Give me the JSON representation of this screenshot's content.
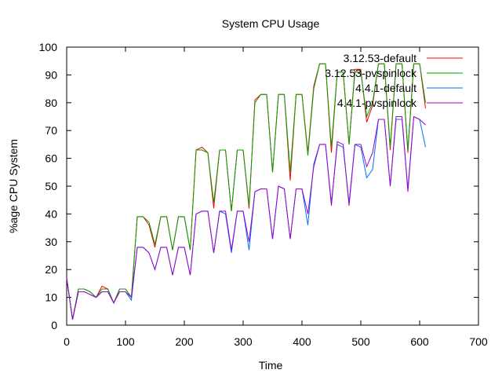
{
  "chart_data": {
    "type": "line",
    "title": "System CPU Usage",
    "xlabel": "Time",
    "ylabel": "%age CPU System",
    "xlim": [
      0,
      700
    ],
    "ylim": [
      0,
      100
    ],
    "xticks": [
      0,
      100,
      200,
      300,
      400,
      500,
      600,
      700
    ],
    "yticks": [
      0,
      10,
      20,
      30,
      40,
      50,
      60,
      70,
      80,
      90,
      100
    ],
    "grid": false,
    "legend": "top-right",
    "x": [
      0,
      10,
      20,
      30,
      40,
      50,
      60,
      70,
      80,
      90,
      100,
      110,
      120,
      130,
      140,
      150,
      160,
      170,
      180,
      190,
      200,
      210,
      220,
      230,
      240,
      250,
      260,
      270,
      280,
      290,
      300,
      310,
      320,
      330,
      340,
      350,
      360,
      370,
      380,
      390,
      400,
      410,
      420,
      430,
      440,
      450,
      460,
      470,
      480,
      490,
      500,
      510,
      520,
      530,
      540,
      550,
      560,
      570,
      580,
      590,
      600,
      610
    ],
    "series": [
      {
        "name": "3.12.53-default",
        "color": "#ff0000",
        "values": [
          17,
          2,
          13,
          13,
          12,
          10,
          14,
          13,
          8,
          13,
          13,
          10,
          39,
          39,
          36,
          28,
          39,
          39,
          27,
          39,
          39,
          27,
          63,
          64,
          62,
          42,
          63,
          63,
          41,
          63,
          63,
          42,
          81,
          83,
          83,
          55,
          83,
          83,
          52,
          83,
          83,
          62,
          86,
          94,
          94,
          62,
          91,
          91,
          65,
          92,
          92,
          73,
          79,
          94,
          94,
          63,
          94,
          94,
          62,
          94,
          94,
          78
        ]
      },
      {
        "name": "3.12.53-pvspinlock",
        "color": "#00a000",
        "values": [
          17,
          2,
          13,
          13,
          12,
          10,
          13,
          13,
          8,
          13,
          13,
          10,
          39,
          39,
          37,
          29,
          39,
          39,
          27,
          39,
          39,
          27,
          63,
          63,
          62,
          44,
          63,
          63,
          41,
          63,
          63,
          43,
          80,
          83,
          83,
          55,
          83,
          83,
          55,
          83,
          83,
          61,
          85,
          94,
          94,
          64,
          91,
          91,
          65,
          91,
          91,
          75,
          80,
          94,
          94,
          64,
          94,
          94,
          63,
          94,
          94,
          80
        ]
      },
      {
        "name": "4.4.1-default",
        "color": "#0070ff",
        "values": [
          17,
          2,
          12,
          12,
          11,
          10,
          12,
          12,
          8,
          12,
          12,
          9,
          28,
          28,
          26,
          20,
          28,
          28,
          18,
          28,
          28,
          18,
          40,
          41,
          41,
          26,
          41,
          40,
          26,
          41,
          41,
          27,
          48,
          49,
          49,
          31,
          50,
          49,
          31,
          49,
          49,
          36,
          58,
          65,
          65,
          44,
          65,
          64,
          44,
          65,
          64,
          53,
          56,
          74,
          74,
          50,
          74,
          74,
          49,
          75,
          74,
          64
        ]
      },
      {
        "name": "4.4.1-pvspinlock",
        "color": "#a000c8",
        "values": [
          17,
          2,
          12,
          12,
          11,
          10,
          12,
          12,
          8,
          12,
          12,
          10,
          28,
          28,
          26,
          20,
          28,
          28,
          18,
          28,
          28,
          18,
          40,
          41,
          41,
          26,
          41,
          41,
          27,
          41,
          41,
          30,
          48,
          49,
          49,
          31,
          50,
          49,
          31,
          49,
          49,
          40,
          57,
          65,
          65,
          43,
          66,
          65,
          43,
          65,
          65,
          57,
          62,
          74,
          74,
          50,
          75,
          75,
          48,
          75,
          74,
          72
        ]
      }
    ]
  }
}
